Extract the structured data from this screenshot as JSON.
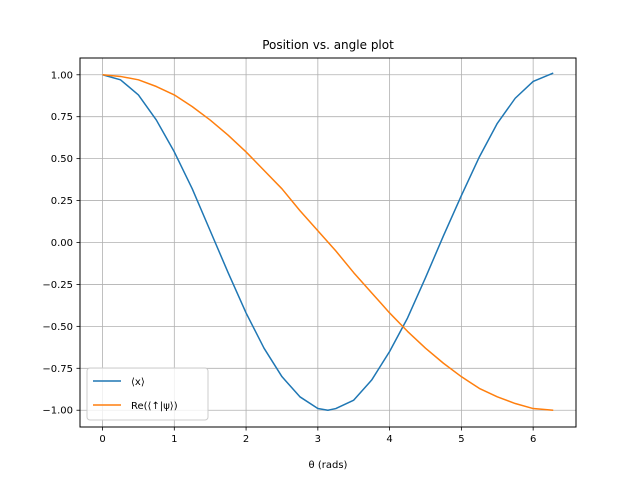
{
  "chart_data": {
    "type": "line",
    "title": "Position vs. angle plot",
    "xlabel": "θ (rads)",
    "ylabel": "",
    "xlim": [
      -0.314,
      6.597
    ],
    "ylim": [
      -1.1,
      1.1
    ],
    "xticks": [
      0,
      1,
      2,
      3,
      4,
      5,
      6
    ],
    "xtick_labels": [
      "0",
      "1",
      "2",
      "3",
      "4",
      "5",
      "6"
    ],
    "yticks": [
      -1.0,
      -0.75,
      -0.5,
      -0.25,
      0.0,
      0.25,
      0.5,
      0.75,
      1.0
    ],
    "ytick_labels": [
      "−1.00",
      "−0.75",
      "−0.50",
      "−0.25",
      "0.00",
      "0.25",
      "0.50",
      "0.75",
      "1.00"
    ],
    "grid": true,
    "legend_position": "lower-left",
    "series": [
      {
        "name": "⟨x⟩",
        "color": "#1f77b4",
        "x": [
          0,
          0.25,
          0.5,
          0.75,
          1.0,
          1.25,
          1.5,
          1.75,
          2.0,
          2.25,
          2.5,
          2.75,
          3.0,
          3.14,
          3.25,
          3.5,
          3.75,
          4.0,
          4.25,
          4.5,
          4.75,
          5.0,
          5.25,
          5.5,
          5.75,
          6.0,
          6.28
        ],
        "y": [
          1.0,
          0.97,
          0.88,
          0.73,
          0.54,
          0.32,
          0.07,
          -0.18,
          -0.42,
          -0.63,
          -0.8,
          -0.92,
          -0.99,
          -1.0,
          -0.99,
          -0.94,
          -0.82,
          -0.65,
          -0.45,
          -0.21,
          0.04,
          0.28,
          0.51,
          0.71,
          0.86,
          0.96,
          1.01
        ]
      },
      {
        "name": "Re(⟨↑|ψ⟩)",
        "color": "#ff7f0e",
        "x": [
          0,
          0.25,
          0.5,
          0.75,
          1.0,
          1.25,
          1.5,
          1.75,
          2.0,
          2.25,
          2.5,
          2.75,
          3.0,
          3.25,
          3.5,
          3.75,
          4.0,
          4.25,
          4.5,
          4.75,
          5.0,
          5.25,
          5.5,
          5.75,
          6.0,
          6.28
        ],
        "y": [
          1.0,
          0.99,
          0.97,
          0.93,
          0.88,
          0.81,
          0.73,
          0.64,
          0.54,
          0.43,
          0.32,
          0.19,
          0.07,
          -0.05,
          -0.18,
          -0.3,
          -0.42,
          -0.53,
          -0.63,
          -0.72,
          -0.8,
          -0.87,
          -0.92,
          -0.96,
          -0.99,
          -1.0
        ]
      }
    ]
  }
}
